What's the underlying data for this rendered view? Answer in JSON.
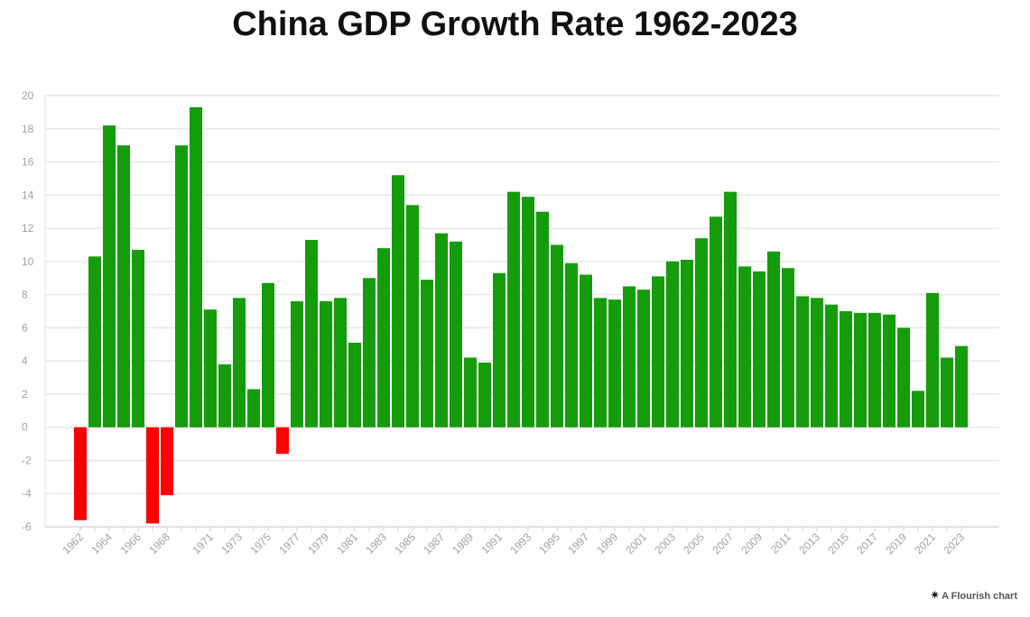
{
  "credit": {
    "icon": "flourish-star-icon",
    "text": "A Flourish chart"
  },
  "chart_data": {
    "type": "bar",
    "title": "China GDP Growth Rate 1962-2023",
    "xlabel": "",
    "ylabel": "",
    "ylim": [
      -6,
      20
    ],
    "yticks": [
      20,
      18,
      16,
      14,
      12,
      10,
      8,
      6,
      4,
      2,
      0,
      -2,
      -4,
      -6
    ],
    "grid": true,
    "colors": {
      "positive": "#149c0a",
      "negative": "#ff0000",
      "grid": "#e6e6e6",
      "tick_text": "#a0a0a0"
    },
    "categories": [
      "1962",
      "1963",
      "1964",
      "1965",
      "1966",
      "1967",
      "1968",
      "1969",
      "1970",
      "1971",
      "1972",
      "1973",
      "1974",
      "1975",
      "1976",
      "1977",
      "1978",
      "1979",
      "1980",
      "1981",
      "1982",
      "1983",
      "1984",
      "1985",
      "1986",
      "1987",
      "1988",
      "1989",
      "1990",
      "1991",
      "1992",
      "1993",
      "1994",
      "1995",
      "1996",
      "1997",
      "1998",
      "1999",
      "2000",
      "2001",
      "2002",
      "2003",
      "2004",
      "2005",
      "2006",
      "2007",
      "2008",
      "2009",
      "2010",
      "2011",
      "2012",
      "2013",
      "2014",
      "2015",
      "2016",
      "2017",
      "2018",
      "2019",
      "2020",
      "2021",
      "2022",
      "2023"
    ],
    "visible_xtick_labels": [
      "1962",
      "1964",
      "1966",
      "1968",
      "1971",
      "1973",
      "1975",
      "1977",
      "1979",
      "1981",
      "1983",
      "1985",
      "1987",
      "1989",
      "1991",
      "1993",
      "1995",
      "1997",
      "1999",
      "2001",
      "2003",
      "2005",
      "2007",
      "2009",
      "2011",
      "2013",
      "2015",
      "2017",
      "2019",
      "2021",
      "2023"
    ],
    "values": [
      -5.6,
      10.3,
      18.2,
      17.0,
      10.7,
      -5.8,
      -4.1,
      17.0,
      19.3,
      7.1,
      3.8,
      7.8,
      2.3,
      8.7,
      -1.6,
      7.6,
      11.3,
      7.6,
      7.8,
      5.1,
      9.0,
      10.8,
      15.2,
      13.4,
      8.9,
      11.7,
      11.2,
      4.2,
      3.9,
      9.3,
      14.2,
      13.9,
      13.0,
      11.0,
      9.9,
      9.2,
      7.8,
      7.7,
      8.5,
      8.3,
      9.1,
      10.0,
      10.1,
      11.4,
      12.7,
      14.2,
      9.7,
      9.4,
      10.6,
      9.6,
      7.9,
      7.8,
      7.4,
      7.0,
      6.9,
      6.9,
      6.8,
      6.0,
      2.2,
      8.1,
      4.2,
      4.9
    ]
  }
}
